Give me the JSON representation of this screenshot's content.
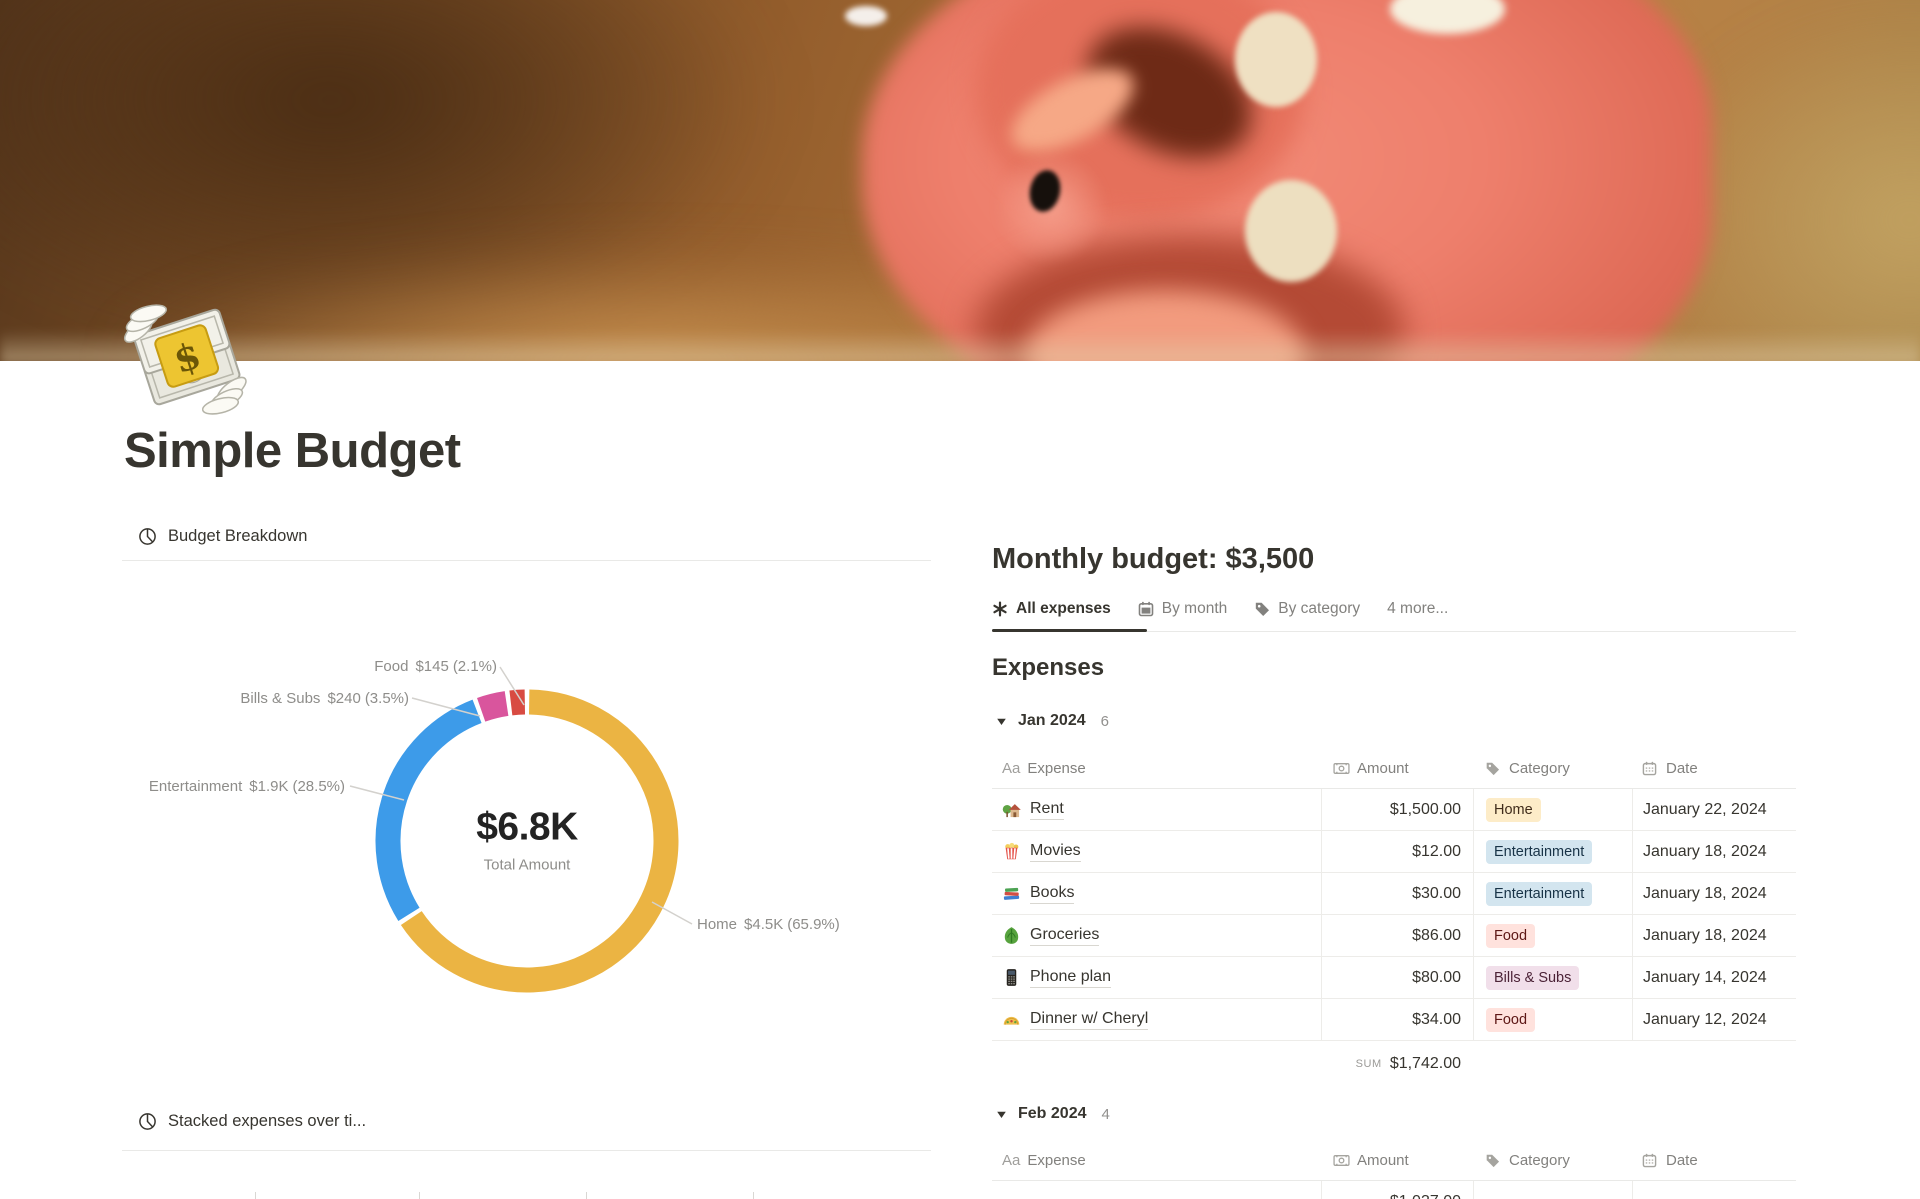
{
  "page": {
    "title": "Simple Budget",
    "icon": "money-with-wings"
  },
  "left_panel": {
    "view1_title": "Budget Breakdown",
    "view2_title": "Stacked expenses over ti..."
  },
  "chart_data": {
    "type": "pie",
    "title": "Budget Breakdown",
    "center_value": "$6.8K",
    "center_label": "Total Amount",
    "legend_position": "callout-labels",
    "segments": [
      {
        "label": "Home",
        "amount": "$4.5K",
        "percent": 65.9,
        "percent_label": "(65.9%)",
        "color": "#EBB443"
      },
      {
        "label": "Entertainment",
        "amount": "$1.9K",
        "percent": 28.5,
        "percent_label": "(28.5%)",
        "color": "#3D9BE9"
      },
      {
        "label": "Bills & Subs",
        "amount": "$240",
        "percent": 3.5,
        "percent_label": "(3.5%)",
        "color": "#D9559D"
      },
      {
        "label": "Food",
        "amount": "$145",
        "percent": 2.1,
        "percent_label": "(2.1%)",
        "color": "#D84B42"
      }
    ]
  },
  "right_panel": {
    "heading": "Monthly budget: $3,500",
    "tabs": [
      {
        "icon": "asterisk",
        "label": "All expenses",
        "active": true
      },
      {
        "icon": "calendar",
        "label": "By month"
      },
      {
        "icon": "tag",
        "label": "By category"
      },
      {
        "label": "4 more..."
      }
    ],
    "section_title": "Expenses",
    "columns": {
      "c1": "Expense",
      "c1_icon": "Aa",
      "c2": "Amount",
      "c3": "Category",
      "c4": "Date"
    },
    "groups": [
      {
        "name": "Jan 2024",
        "count": "6",
        "rows": [
          {
            "icon": "house",
            "name": "Rent",
            "amount": "$1,500.00",
            "category": "Home",
            "date": "January 22, 2024"
          },
          {
            "icon": "popcorn",
            "name": "Movies",
            "amount": "$12.00",
            "category": "Entertainment",
            "date": "January 18, 2024"
          },
          {
            "icon": "books",
            "name": "Books",
            "amount": "$30.00",
            "category": "Entertainment",
            "date": "January 18, 2024"
          },
          {
            "icon": "leafy-green",
            "name": "Groceries",
            "amount": "$86.00",
            "category": "Food",
            "date": "January 18, 2024"
          },
          {
            "icon": "mobile-phone",
            "name": "Phone plan",
            "amount": "$80.00",
            "category": "Bills & Subs",
            "date": "January 14, 2024"
          },
          {
            "icon": "taco",
            "name": "Dinner w/ Cheryl",
            "amount": "$34.00",
            "category": "Food",
            "date": "January 12, 2024"
          }
        ],
        "sum_label": "SUM",
        "sum": "$1,742.00"
      },
      {
        "name": "Feb 2024",
        "count": "4",
        "rows": [
          {
            "icon": "",
            "name": "",
            "amount": "$1,037.00",
            "category": "",
            "date": ""
          }
        ]
      }
    ]
  },
  "category_colors": {
    "Home": {
      "bg": "#FDECC8",
      "text": "#402C1B"
    },
    "Entertainment": {
      "bg": "#D3E5EF",
      "text": "#183347"
    },
    "Food": {
      "bg": "#FFE2DD",
      "text": "#5D1715"
    },
    "Bills & Subs": {
      "bg": "#F1DFEA",
      "text": "#4C2337"
    }
  }
}
